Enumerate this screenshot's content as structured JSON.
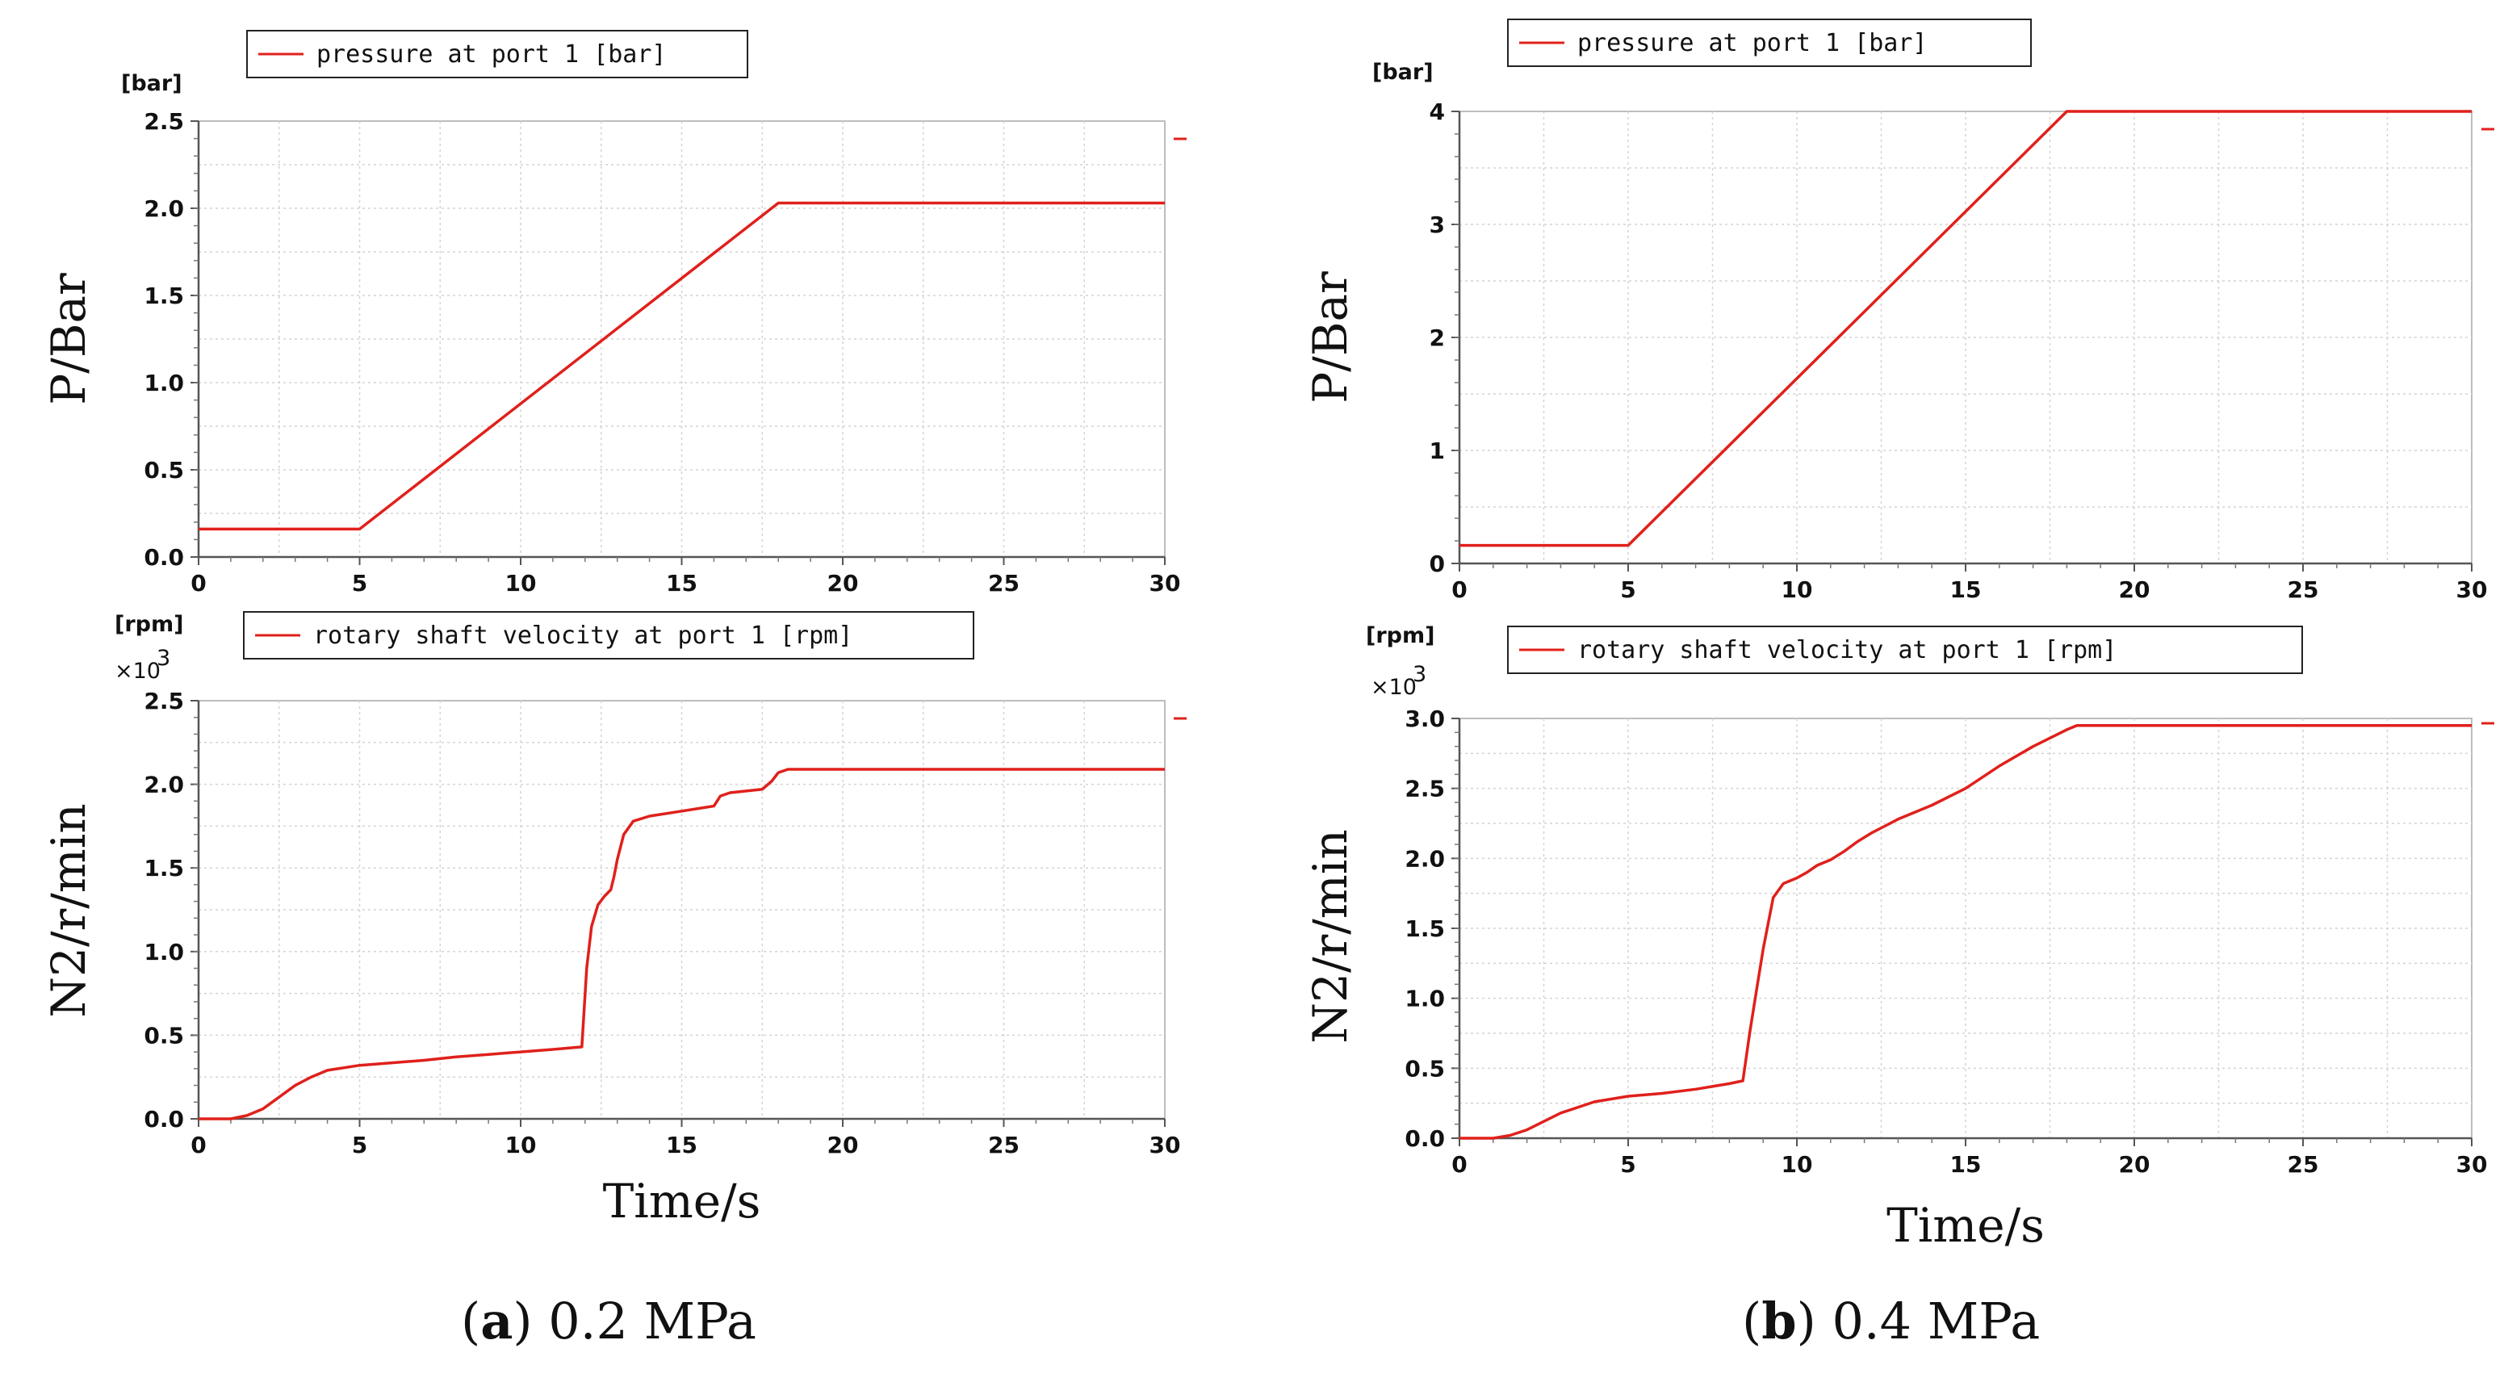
{
  "chart_data": [
    {
      "id": "a_pressure",
      "type": "line",
      "unit_label": "[bar]",
      "legend": "pressure at port 1 [bar]",
      "ylabel": "P/Bar",
      "xlabel": "",
      "xlim": [
        0,
        30
      ],
      "ylim": [
        0,
        2.5
      ],
      "xticks": [
        0,
        5,
        10,
        15,
        20,
        25,
        30
      ],
      "yticks": [
        "0.0",
        "0.5",
        "1.0",
        "1.5",
        "2.0",
        "2.5"
      ],
      "exponent": "",
      "series": [
        {
          "name": "pressure at port 1 [bar]",
          "color": "#e0201b",
          "x": [
            0,
            5,
            18,
            30
          ],
          "y": [
            0.16,
            0.16,
            2.03,
            2.03
          ]
        }
      ]
    },
    {
      "id": "b_pressure",
      "type": "line",
      "unit_label": "[bar]",
      "legend": "pressure at port 1 [bar]",
      "ylabel": "P/Bar",
      "xlabel": "",
      "xlim": [
        0,
        30
      ],
      "ylim": [
        0,
        4
      ],
      "xticks": [
        0,
        5,
        10,
        15,
        20,
        25,
        30
      ],
      "yticks": [
        "0",
        "1",
        "2",
        "3",
        "4"
      ],
      "exponent": "",
      "series": [
        {
          "name": "pressure at port 1 [bar]",
          "color": "#e0201b",
          "x": [
            0,
            5,
            18,
            30
          ],
          "y": [
            0.16,
            0.16,
            4.0,
            4.0
          ]
        }
      ]
    },
    {
      "id": "a_speed",
      "type": "line",
      "unit_label": "[rpm]",
      "legend": "rotary shaft velocity at port 1 [rpm]",
      "ylabel": "N2/r/min",
      "xlabel": "Time/s",
      "xlim": [
        0,
        30
      ],
      "ylim": [
        0,
        2.5
      ],
      "xticks": [
        0,
        5,
        10,
        15,
        20,
        25,
        30
      ],
      "yticks": [
        "0.0",
        "0.5",
        "1.0",
        "1.5",
        "2.0",
        "2.5"
      ],
      "exponent": "×10",
      "exponent_power": "3",
      "series": [
        {
          "name": "rotary shaft velocity at port 1 [rpm]",
          "color": "#e0201b",
          "x": [
            0,
            1,
            1.5,
            2,
            2.5,
            3,
            3.5,
            4,
            5,
            6,
            7,
            8,
            9,
            10,
            11,
            11.9,
            12.05,
            12.2,
            12.4,
            12.6,
            12.8,
            12.9,
            13.0,
            13.2,
            13.5,
            14,
            15,
            16,
            16.2,
            16.5,
            17,
            17.5,
            17.8,
            18,
            18.3,
            20,
            25,
            30
          ],
          "y": [
            0,
            0,
            0.02,
            0.06,
            0.13,
            0.2,
            0.25,
            0.29,
            0.32,
            0.335,
            0.35,
            0.37,
            0.385,
            0.4,
            0.415,
            0.43,
            0.9,
            1.15,
            1.28,
            1.33,
            1.37,
            1.45,
            1.55,
            1.7,
            1.78,
            1.81,
            1.84,
            1.87,
            1.93,
            1.95,
            1.96,
            1.97,
            2.02,
            2.07,
            2.09,
            2.09,
            2.09,
            2.09
          ]
        }
      ]
    },
    {
      "id": "b_speed",
      "type": "line",
      "unit_label": "[rpm]",
      "legend": "rotary shaft velocity at port 1 [rpm]",
      "ylabel": "N2/r/min",
      "xlabel": "Time/s",
      "xlim": [
        0,
        30
      ],
      "ylim": [
        0,
        3.0
      ],
      "xticks": [
        0,
        5,
        10,
        15,
        20,
        25,
        30
      ],
      "yticks": [
        "0.0",
        "0.5",
        "1.0",
        "1.5",
        "2.0",
        "2.5",
        "3.0"
      ],
      "exponent": "×10",
      "exponent_power": "3",
      "series": [
        {
          "name": "rotary shaft velocity at port 1 [rpm]",
          "color": "#e0201b",
          "x": [
            0,
            1,
            1.5,
            2,
            2.5,
            3,
            3.5,
            4,
            5,
            6,
            7,
            8,
            8.4,
            8.6,
            8.8,
            9.0,
            9.3,
            9.6,
            10,
            10.3,
            10.6,
            11,
            11.4,
            11.8,
            12.2,
            12.6,
            13.0,
            13.5,
            14,
            14.5,
            15,
            16,
            17,
            18,
            18.3,
            20,
            25,
            30
          ],
          "y": [
            0,
            0,
            0.02,
            0.06,
            0.12,
            0.18,
            0.22,
            0.26,
            0.3,
            0.32,
            0.35,
            0.39,
            0.41,
            0.75,
            1.05,
            1.35,
            1.72,
            1.82,
            1.86,
            1.9,
            1.95,
            1.99,
            2.05,
            2.12,
            2.18,
            2.23,
            2.28,
            2.33,
            2.38,
            2.44,
            2.5,
            2.66,
            2.8,
            2.92,
            2.95,
            2.95,
            2.95,
            2.95
          ]
        }
      ]
    }
  ],
  "captions": [
    {
      "letter": "a",
      "text": "0.2 MPa"
    },
    {
      "letter": "b",
      "text": "0.4 MPa"
    }
  ]
}
